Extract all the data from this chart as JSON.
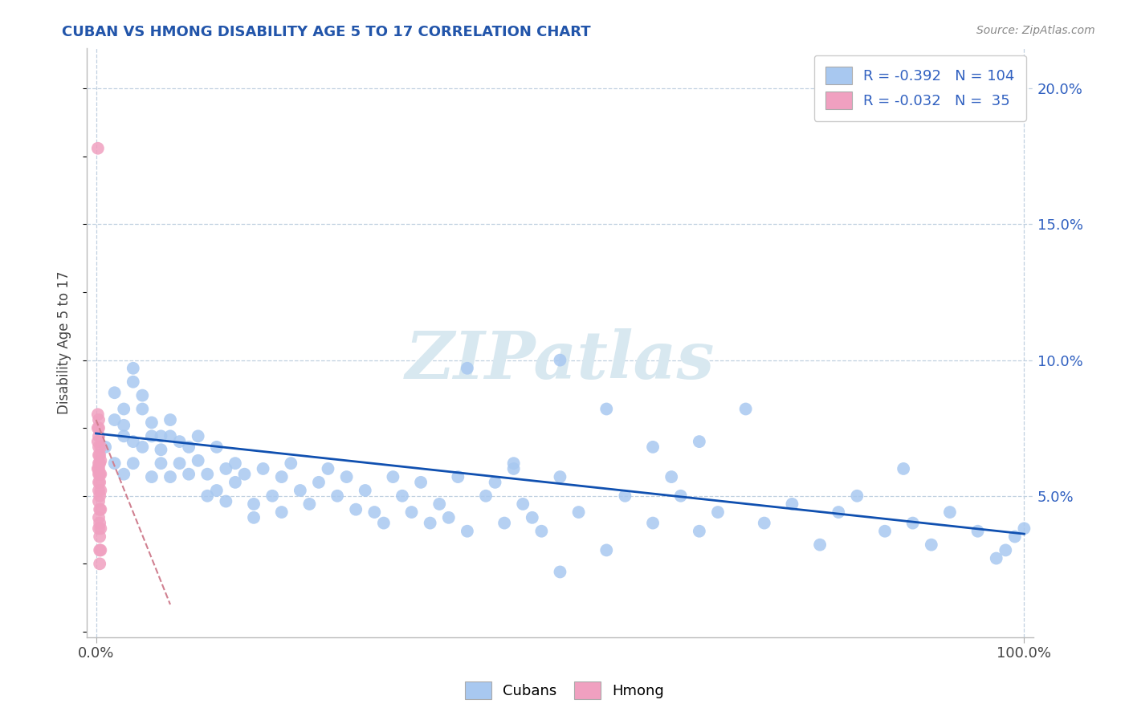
{
  "title": "CUBAN VS HMONG DISABILITY AGE 5 TO 17 CORRELATION CHART",
  "source_text": "Source: ZipAtlas.com",
  "ylabel": "Disability Age 5 to 17",
  "xlim": [
    -0.01,
    1.01
  ],
  "ylim": [
    -0.002,
    0.215
  ],
  "xtick_positions": [
    0.0,
    1.0
  ],
  "xticklabels": [
    "0.0%",
    "100.0%"
  ],
  "ytick_positions": [
    0.0,
    0.05,
    0.1,
    0.15,
    0.2
  ],
  "yticklabels_right": [
    "",
    "5.0%",
    "10.0%",
    "15.0%",
    "20.0%"
  ],
  "grid_yticks": [
    0.05,
    0.1,
    0.15,
    0.2
  ],
  "cuban_R": -0.392,
  "cuban_N": 104,
  "hmong_R": -0.032,
  "hmong_N": 35,
  "cuban_color": "#a8c8f0",
  "hmong_color": "#f0a0c0",
  "cuban_line_color": "#1050b0",
  "hmong_line_color": "#d08090",
  "background_color": "#ffffff",
  "grid_color": "#c0d0e0",
  "title_color": "#2255aa",
  "source_color": "#888888",
  "right_tick_color": "#3060c0",
  "watermark_color": "#d8e8f0",
  "cuban_x": [
    0.01,
    0.02,
    0.02,
    0.02,
    0.03,
    0.03,
    0.03,
    0.03,
    0.04,
    0.04,
    0.04,
    0.04,
    0.05,
    0.05,
    0.05,
    0.06,
    0.06,
    0.06,
    0.07,
    0.07,
    0.07,
    0.08,
    0.08,
    0.08,
    0.09,
    0.09,
    0.1,
    0.1,
    0.11,
    0.11,
    0.12,
    0.12,
    0.13,
    0.13,
    0.14,
    0.14,
    0.15,
    0.15,
    0.16,
    0.17,
    0.17,
    0.18,
    0.19,
    0.2,
    0.2,
    0.21,
    0.22,
    0.23,
    0.24,
    0.25,
    0.26,
    0.27,
    0.28,
    0.29,
    0.3,
    0.31,
    0.32,
    0.33,
    0.34,
    0.35,
    0.36,
    0.37,
    0.38,
    0.39,
    0.4,
    0.42,
    0.43,
    0.44,
    0.45,
    0.46,
    0.47,
    0.48,
    0.5,
    0.5,
    0.52,
    0.55,
    0.57,
    0.6,
    0.62,
    0.63,
    0.65,
    0.67,
    0.7,
    0.72,
    0.75,
    0.78,
    0.8,
    0.82,
    0.85,
    0.87,
    0.88,
    0.9,
    0.92,
    0.95,
    0.97,
    0.98,
    0.99,
    1.0,
    0.6,
    0.65,
    0.5,
    0.55,
    0.4,
    0.45
  ],
  "cuban_y": [
    0.068,
    0.078,
    0.088,
    0.062,
    0.058,
    0.072,
    0.082,
    0.076,
    0.062,
    0.07,
    0.092,
    0.097,
    0.082,
    0.068,
    0.087,
    0.077,
    0.072,
    0.057,
    0.072,
    0.067,
    0.062,
    0.078,
    0.072,
    0.057,
    0.07,
    0.062,
    0.068,
    0.058,
    0.063,
    0.072,
    0.058,
    0.05,
    0.068,
    0.052,
    0.06,
    0.048,
    0.062,
    0.055,
    0.058,
    0.047,
    0.042,
    0.06,
    0.05,
    0.057,
    0.044,
    0.062,
    0.052,
    0.047,
    0.055,
    0.06,
    0.05,
    0.057,
    0.045,
    0.052,
    0.044,
    0.04,
    0.057,
    0.05,
    0.044,
    0.055,
    0.04,
    0.047,
    0.042,
    0.057,
    0.037,
    0.05,
    0.055,
    0.04,
    0.06,
    0.047,
    0.042,
    0.037,
    0.057,
    0.022,
    0.044,
    0.03,
    0.05,
    0.04,
    0.057,
    0.05,
    0.037,
    0.044,
    0.082,
    0.04,
    0.047,
    0.032,
    0.044,
    0.05,
    0.037,
    0.06,
    0.04,
    0.032,
    0.044,
    0.037,
    0.027,
    0.03,
    0.035,
    0.038,
    0.068,
    0.07,
    0.1,
    0.082,
    0.097,
    0.062
  ],
  "hmong_x": [
    0.002,
    0.002,
    0.002,
    0.002,
    0.002,
    0.003,
    0.003,
    0.003,
    0.003,
    0.003,
    0.003,
    0.003,
    0.003,
    0.003,
    0.003,
    0.003,
    0.003,
    0.003,
    0.004,
    0.004,
    0.004,
    0.004,
    0.004,
    0.004,
    0.004,
    0.004,
    0.004,
    0.004,
    0.005,
    0.005,
    0.005,
    0.005,
    0.005,
    0.005,
    0.005
  ],
  "hmong_y": [
    0.178,
    0.06,
    0.07,
    0.075,
    0.08,
    0.055,
    0.06,
    0.065,
    0.068,
    0.072,
    0.075,
    0.078,
    0.062,
    0.058,
    0.052,
    0.048,
    0.042,
    0.038,
    0.065,
    0.062,
    0.058,
    0.055,
    0.05,
    0.045,
    0.04,
    0.035,
    0.03,
    0.025,
    0.068,
    0.063,
    0.058,
    0.052,
    0.045,
    0.038,
    0.03
  ],
  "hmong_line_x": [
    0.0,
    0.08
  ],
  "hmong_line_y_start": 0.078,
  "hmong_line_y_end": 0.01,
  "cuban_line_x": [
    0.0,
    1.0
  ],
  "cuban_line_y_start": 0.073,
  "cuban_line_y_end": 0.036
}
